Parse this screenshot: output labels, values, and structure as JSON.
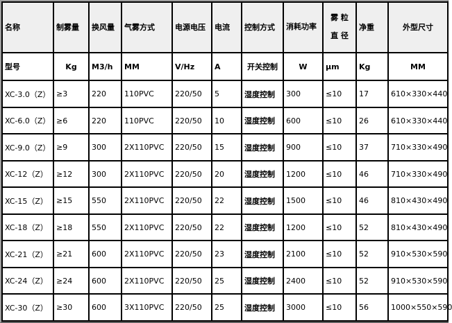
{
  "headers": [
    "名称",
    "制雾量",
    "换风量",
    "气雾方式",
    "电源电压",
    "电流",
    "控制方式",
    "消耗功率",
    "雾 粒 直 径",
    "净重",
    "外型尺寸"
  ],
  "units": [
    "型号",
    "Kg",
    "M3/h",
    "MM",
    "V/Hz",
    "A",
    "开关控制",
    "W",
    "μm",
    "Kg",
    "MM"
  ],
  "rows": [
    [
      "XC-3.0（Z）",
      "≥3",
      "220",
      "110PVC",
      "220/50",
      "5",
      "湿度控制",
      "300",
      "≤10",
      "17",
      "610×330×440"
    ],
    [
      "XC-6.0（Z）",
      "≥6",
      "220",
      "110PVC",
      "220/50",
      "10",
      "湿度控制",
      "600",
      "≤10",
      "26",
      "610×330×440"
    ],
    [
      "XC-9.0（Z）",
      "≥9",
      "300",
      "2X110PVC",
      "220/50",
      "15",
      "湿度控制",
      "900",
      "≤10",
      "37",
      "710×330×490"
    ],
    [
      "XC-12（Z）",
      "≥12",
      "300",
      "2X110PVC",
      "220/50",
      "20",
      "湿度控制",
      "1200",
      "≤10",
      "46",
      "710×330×490"
    ],
    [
      "XC-15（Z）",
      "≥15",
      "550",
      "2X110PVC",
      "220/50",
      "22",
      "湿度控制",
      "1500",
      "≤10",
      "46",
      "810×430×490"
    ],
    [
      "XC-18（Z）",
      "≥18",
      "550",
      "2X110PVC",
      "220/50",
      "22",
      "湿度控制",
      "1200",
      "≤10",
      "52",
      "810×430×490"
    ],
    [
      "XC-21（Z）",
      "≥21",
      "600",
      "2X110PVC",
      "220/50",
      "23",
      "湿度控制",
      "2100",
      "≤10",
      "52",
      "910×530×590"
    ],
    [
      "XC-24（Z）",
      "≥24",
      "600",
      "2X110PVC",
      "220/50",
      "25",
      "湿度控制",
      "2400",
      "≤10",
      "52",
      "910×530×590"
    ],
    [
      "XC-30（Z）",
      "≥30",
      "600",
      "3X110PVC",
      "220/50",
      "25",
      "湿度控制",
      "3000",
      "≤10",
      "56",
      "1000×550×590"
    ]
  ],
  "colors": {
    "header_bg": "#efefef",
    "border": "#000000"
  }
}
